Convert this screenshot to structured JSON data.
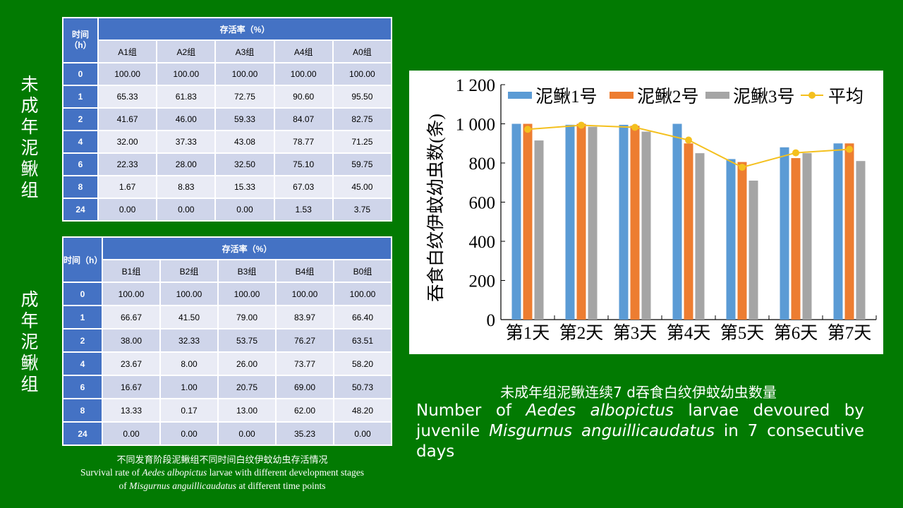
{
  "juvenile_label": "未成年泥鳅组",
  "adult_label": "成年泥鳅组",
  "table_a": {
    "time_header": "时间（h）",
    "survival_header": "存活率（%）",
    "columns": [
      "A1组",
      "A2组",
      "A3组",
      "A4组",
      "A0组"
    ],
    "rows": [
      {
        "time": "0",
        "values": [
          "100.00",
          "100.00",
          "100.00",
          "100.00",
          "100.00"
        ]
      },
      {
        "time": "1",
        "values": [
          "65.33",
          "61.83",
          "72.75",
          "90.60",
          "95.50"
        ]
      },
      {
        "time": "2",
        "values": [
          "41.67",
          "46.00",
          "59.33",
          "84.07",
          "82.75"
        ]
      },
      {
        "time": "4",
        "values": [
          "32.00",
          "37.33",
          "43.08",
          "78.77",
          "71.25"
        ]
      },
      {
        "time": "6",
        "values": [
          "22.33",
          "28.00",
          "32.50",
          "75.10",
          "59.75"
        ]
      },
      {
        "time": "8",
        "values": [
          "1.67",
          "8.83",
          "15.33",
          "67.03",
          "45.00"
        ]
      },
      {
        "time": "24",
        "values": [
          "0.00",
          "0.00",
          "0.00",
          "1.53",
          "3.75"
        ]
      }
    ]
  },
  "table_b": {
    "time_header": "时间（h）",
    "survival_header": "存活率（%）",
    "columns": [
      "B1组",
      "B2组",
      "B3组",
      "B4组",
      "B0组"
    ],
    "rows": [
      {
        "time": "0",
        "values": [
          "100.00",
          "100.00",
          "100.00",
          "100.00",
          "100.00"
        ]
      },
      {
        "time": "1",
        "values": [
          "66.67",
          "41.50",
          "79.00",
          "83.97",
          "66.40"
        ]
      },
      {
        "time": "2",
        "values": [
          "38.00",
          "32.33",
          "53.75",
          "76.27",
          "63.51"
        ]
      },
      {
        "time": "4",
        "values": [
          "23.67",
          "8.00",
          "26.00",
          "73.77",
          "58.20"
        ]
      },
      {
        "time": "6",
        "values": [
          "16.67",
          "1.00",
          "20.75",
          "69.00",
          "50.73"
        ]
      },
      {
        "time": "8",
        "values": [
          "13.33",
          "0.17",
          "13.00",
          "62.00",
          "48.20"
        ]
      },
      {
        "time": "24",
        "values": [
          "0.00",
          "0.00",
          "0.00",
          "35.23",
          "0.00"
        ]
      }
    ]
  },
  "table_caption": {
    "cn": "不同发育阶段泥鳅组不同时间白纹伊蚊幼虫存活情况",
    "en_1": "Survival  rate of ",
    "en_1_italic": "Aedes albopictus",
    "en_2": " larvae  with  different  development  stages",
    "en_3": "of ",
    "en_3_italic": "Misgurnus anguillicaudatus",
    "en_4": " at different  time  points"
  },
  "chart_title_cn": "未成年组泥鳅连续7 d吞食白纹伊蚊幼虫数量",
  "chart_desc": {
    "p1": "Number of ",
    "i1": "Aedes albopictus",
    "p2": " larvae devoured by juvenile ",
    "i2": "Misgurnus anguillicaudatus",
    "p3": " in 7 consecutive days"
  },
  "chart_data": {
    "type": "bar",
    "ylabel": "吞食白纹伊蚊幼虫数(条)",
    "ylim": [
      0,
      1200
    ],
    "yticks": [
      "0",
      "200",
      "400",
      "600",
      "800",
      "1 000",
      "1 200"
    ],
    "categories": [
      "第1天",
      "第2天",
      "第3天",
      "第4天",
      "第5天",
      "第6天",
      "第7天"
    ],
    "series": [
      {
        "name": "泥鳅1号",
        "type": "bar",
        "color": "#5b9bd5",
        "values": [
          1000,
          995,
          995,
          1000,
          820,
          880,
          900
        ]
      },
      {
        "name": "泥鳅2号",
        "type": "bar",
        "color": "#ed7d31",
        "values": [
          1000,
          1000,
          990,
          900,
          805,
          825,
          900
        ]
      },
      {
        "name": "泥鳅3号",
        "type": "bar",
        "color": "#a5a5a5",
        "values": [
          915,
          985,
          960,
          850,
          710,
          850,
          810
        ]
      },
      {
        "name": "平均",
        "type": "line",
        "color": "#f4c01e",
        "values": [
          972,
          993,
          982,
          917,
          778,
          852,
          870
        ]
      }
    ],
    "legend_position": "top"
  }
}
